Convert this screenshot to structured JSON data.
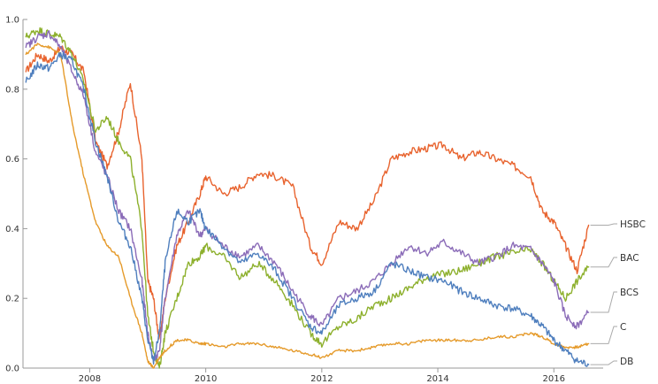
{
  "chart_data": {
    "type": "line",
    "title": "",
    "xlabel": "",
    "ylabel": "",
    "xlim": [
      2006.85,
      2016.85
    ],
    "ylim": [
      0.0,
      1.0
    ],
    "xticks": [
      "2008",
      "2010",
      "2012",
      "2014",
      "2016"
    ],
    "yticks": [
      "0.0",
      "0.2",
      "0.4",
      "0.6",
      "0.8",
      "1.0"
    ],
    "grid": false,
    "legend_placement": "right (labels at line ends)",
    "x": [
      2006.9,
      2007.1,
      2007.3,
      2007.5,
      2007.7,
      2007.9,
      2008.1,
      2008.3,
      2008.5,
      2008.7,
      2008.9,
      2009.0,
      2009.1,
      2009.2,
      2009.3,
      2009.5,
      2009.7,
      2009.9,
      2010.0,
      2010.3,
      2010.6,
      2010.9,
      2011.2,
      2011.5,
      2011.8,
      2012.0,
      2012.3,
      2012.6,
      2012.9,
      2013.2,
      2013.5,
      2013.8,
      2014.1,
      2014.4,
      2014.7,
      2015.0,
      2015.3,
      2015.6,
      2015.8,
      2016.0,
      2016.2,
      2016.4,
      2016.6
    ],
    "series": [
      {
        "name": "HSBC",
        "color": "#E8632E",
        "values": [
          0.85,
          0.9,
          0.88,
          0.92,
          0.9,
          0.85,
          0.65,
          0.58,
          0.68,
          0.82,
          0.6,
          0.25,
          0.2,
          0.08,
          0.2,
          0.35,
          0.42,
          0.5,
          0.55,
          0.5,
          0.52,
          0.56,
          0.55,
          0.52,
          0.35,
          0.3,
          0.42,
          0.4,
          0.48,
          0.6,
          0.62,
          0.63,
          0.64,
          0.6,
          0.62,
          0.6,
          0.58,
          0.55,
          0.45,
          0.42,
          0.35,
          0.28,
          0.41
        ]
      },
      {
        "name": "BAC",
        "color": "#8DB02D",
        "values": [
          0.95,
          0.97,
          0.96,
          0.95,
          0.9,
          0.82,
          0.68,
          0.72,
          0.65,
          0.6,
          0.4,
          0.15,
          0.05,
          0.0,
          0.1,
          0.2,
          0.3,
          0.32,
          0.35,
          0.32,
          0.26,
          0.3,
          0.25,
          0.18,
          0.1,
          0.07,
          0.12,
          0.14,
          0.18,
          0.2,
          0.23,
          0.26,
          0.27,
          0.28,
          0.3,
          0.32,
          0.33,
          0.34,
          0.3,
          0.25,
          0.2,
          0.25,
          0.29
        ]
      },
      {
        "name": "BCS",
        "color": "#8B6CB8",
        "values": [
          0.92,
          0.95,
          0.96,
          0.92,
          0.85,
          0.78,
          0.62,
          0.55,
          0.45,
          0.4,
          0.25,
          0.1,
          0.02,
          0.05,
          0.2,
          0.38,
          0.45,
          0.38,
          0.4,
          0.35,
          0.32,
          0.35,
          0.3,
          0.22,
          0.15,
          0.12,
          0.2,
          0.22,
          0.25,
          0.3,
          0.35,
          0.33,
          0.36,
          0.33,
          0.3,
          0.32,
          0.35,
          0.34,
          0.3,
          0.25,
          0.15,
          0.12,
          0.16
        ]
      },
      {
        "name": "C",
        "color": "#E59A2A",
        "values": [
          0.9,
          0.93,
          0.92,
          0.9,
          0.7,
          0.55,
          0.42,
          0.35,
          0.32,
          0.2,
          0.1,
          0.02,
          0.0,
          0.03,
          0.05,
          0.08,
          0.08,
          0.07,
          0.07,
          0.06,
          0.07,
          0.07,
          0.06,
          0.05,
          0.04,
          0.03,
          0.05,
          0.05,
          0.06,
          0.07,
          0.07,
          0.08,
          0.08,
          0.08,
          0.08,
          0.09,
          0.09,
          0.1,
          0.09,
          0.07,
          0.06,
          0.06,
          0.07
        ]
      },
      {
        "name": "DB",
        "color": "#4F7FBE",
        "values": [
          0.82,
          0.87,
          0.86,
          0.9,
          0.88,
          0.8,
          0.65,
          0.55,
          0.42,
          0.35,
          0.2,
          0.08,
          0.02,
          0.1,
          0.3,
          0.45,
          0.42,
          0.45,
          0.4,
          0.35,
          0.3,
          0.33,
          0.28,
          0.2,
          0.12,
          0.1,
          0.18,
          0.2,
          0.22,
          0.3,
          0.28,
          0.26,
          0.25,
          0.22,
          0.2,
          0.18,
          0.17,
          0.15,
          0.12,
          0.08,
          0.05,
          0.02,
          0.01
        ]
      }
    ]
  }
}
